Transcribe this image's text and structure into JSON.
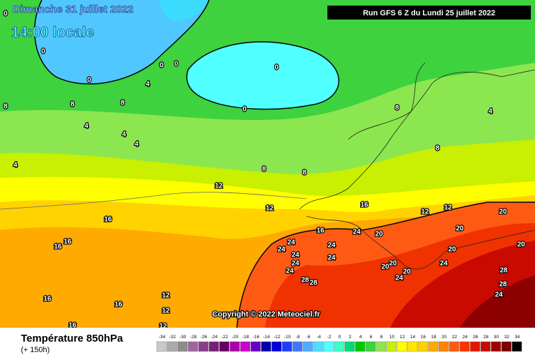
{
  "header": {
    "date": "Dimanche 31 juillet 2022",
    "time": "14:00 locale",
    "run": "Run GFS 6 Z du Lundi 25 juillet 2022"
  },
  "copyright": "Copyright © 2022 Meteociel.fr",
  "footer": {
    "title": "Température 850hPa",
    "lead": "(+ 150h)"
  },
  "legend": {
    "ticks": [
      -34,
      -32,
      -30,
      -28,
      -26,
      -24,
      -22,
      -20,
      -18,
      -16,
      -14,
      -12,
      -10,
      -8,
      -6,
      -4,
      -2,
      0,
      2,
      4,
      6,
      8,
      10,
      12,
      14,
      16,
      18,
      20,
      22,
      24,
      26,
      28,
      30,
      32,
      34
    ],
    "colors": [
      "#c8c8c8",
      "#aaaaaa",
      "#8c8c8c",
      "#a064a0",
      "#8c3c8c",
      "#781e78",
      "#640064",
      "#aa00aa",
      "#c800c8",
      "#6400c8",
      "#0000aa",
      "#0000dc",
      "#1e3cff",
      "#3c78ff",
      "#50aaff",
      "#50dcff",
      "#50ffff",
      "#3cffc8",
      "#00dc78",
      "#00c800",
      "#3cd23c",
      "#8ce650",
      "#c8f000",
      "#ffff00",
      "#ffe600",
      "#ffd200",
      "#ffaa00",
      "#ff8200",
      "#ff5a14",
      "#ff3200",
      "#e61400",
      "#c80a00",
      "#a00000",
      "#780000",
      "#000000"
    ]
  },
  "contour_labels": [
    0,
    0,
    0,
    0,
    0,
    0,
    0,
    4,
    4,
    4,
    4,
    4,
    4,
    8,
    8,
    8,
    8,
    8,
    8,
    8,
    12,
    12,
    12,
    12,
    12,
    12,
    12,
    16,
    16,
    16,
    16,
    16,
    16,
    16,
    16,
    20,
    20,
    20,
    20,
    20,
    20,
    20,
    20,
    24,
    24,
    24,
    24,
    24,
    24,
    24,
    24,
    24,
    24,
    24,
    28,
    28,
    28,
    28
  ]
}
